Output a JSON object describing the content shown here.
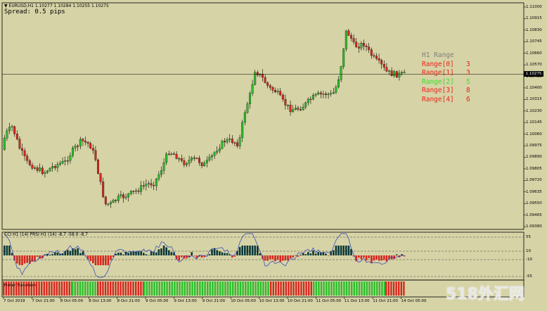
{
  "header": {
    "symbol_line": "▼ EURUSD,H1  1.10277 1.10284 1.10255 1.10275",
    "spread": "Spread: 0.5 pips"
  },
  "range_panel": {
    "title": "H1 Range",
    "items": [
      {
        "label": "Range[0]",
        "value": "3",
        "color": "#e8231b"
      },
      {
        "label": "Range[1]",
        "value": "3",
        "color": "#e8231b"
      },
      {
        "label": "Range[2]",
        "value": "5",
        "color": "#3fdc2a"
      },
      {
        "label": "Range[3]",
        "value": "8",
        "color": "#e8231b"
      },
      {
        "label": "Range[4]",
        "value": "6",
        "color": "#e8231b"
      }
    ]
  },
  "current_price": "1.10275",
  "price_axis": [
    "1.11000",
    "1.10915",
    "1.10830",
    "1.10745",
    "1.10660",
    "1.10570",
    "1.10485",
    "1.10400",
    "1.10315",
    "1.10230",
    "1.10145",
    "1.10060",
    "1.09975",
    "1.09890",
    "1.09805",
    "1.09720",
    "1.09635",
    "1.09550",
    "1.09465",
    "1.09380"
  ],
  "subwindow": {
    "label": "CCI H1 (14) PRSI H1 (14) -8.7 -58.0 -8.7",
    "levels": [
      "55",
      "10",
      "-10",
      "-55"
    ]
  },
  "lower_indicator": {
    "label": "Fisher Transform"
  },
  "time_axis": [
    "7 Oct 2019",
    "7 Oct 21:00",
    "8 Oct 05:00",
    "8 Oct 13:00",
    "8 Oct 21:00",
    "9 Oct 05:00",
    "9 Oct 13:00",
    "9 Oct 21:00",
    "10 Oct 05:00",
    "10 Oct 13:00",
    "10 Oct 21:00",
    "11 Oct 05:00",
    "11 Oct 13:00",
    "11 Oct 21:00",
    "14 Oct 05:00"
  ],
  "watermark": "518外汇网",
  "colors": {
    "bull": "#2bbf2b",
    "bear": "#d8261e",
    "background": "#d6d3a6"
  }
}
